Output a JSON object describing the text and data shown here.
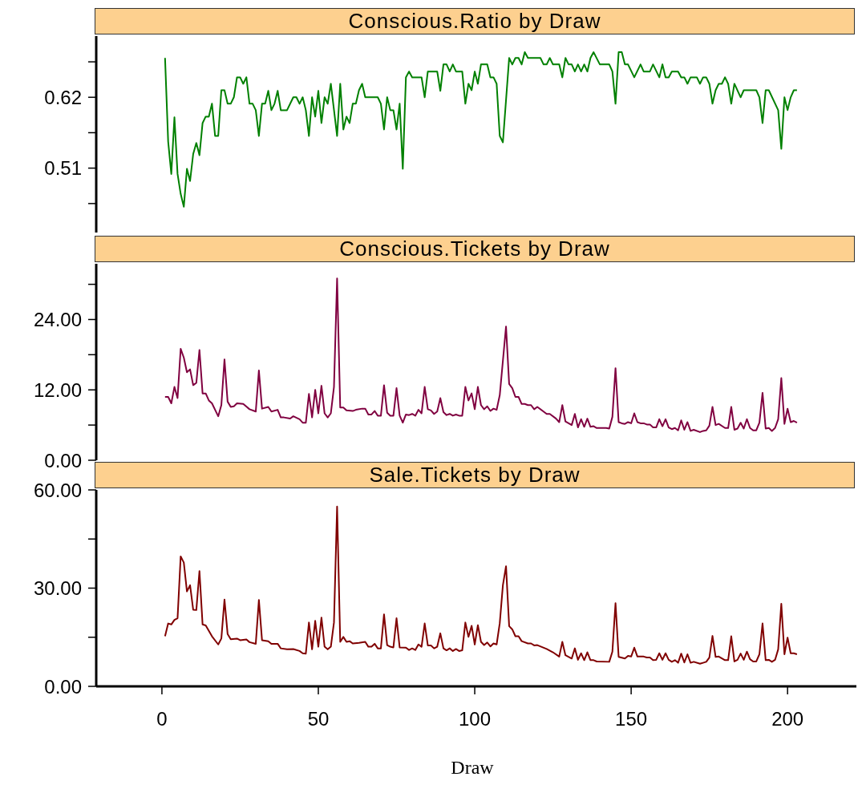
{
  "chart_data": [
    {
      "type": "line",
      "title": "Conscious.Ratio by Draw",
      "tick_labels": "y",
      "marker": "none",
      "xlim": [
        -21,
        222
      ],
      "ylim": [
        0.41,
        0.715
      ],
      "yticks": [
        {
          "value": 0.455,
          "label": null
        },
        0.51,
        {
          "value": 0.565,
          "label": null
        },
        0.62,
        {
          "value": 0.675,
          "label": null
        }
      ],
      "series": [
        {
          "color": "#008000",
          "x": [
            1,
            2,
            3,
            4,
            5,
            6,
            7,
            8,
            9,
            10,
            11,
            12,
            13,
            14,
            15,
            16,
            17,
            18,
            19,
            20,
            21,
            22,
            23,
            24,
            25,
            26,
            27,
            28,
            29,
            30,
            31,
            32,
            33,
            34,
            35,
            36,
            37,
            38,
            40,
            42,
            43,
            44,
            45,
            46,
            47,
            48,
            49,
            50,
            51,
            52,
            53,
            54,
            56,
            57,
            58,
            59,
            60,
            61,
            62,
            63,
            64,
            65,
            69,
            70,
            71,
            72,
            73,
            74,
            75,
            76,
            77,
            78,
            79,
            80,
            83,
            84,
            85,
            88,
            89,
            90,
            91,
            92,
            93,
            94,
            96,
            97,
            98,
            99,
            100,
            101,
            102,
            104,
            105,
            106,
            107,
            108,
            109,
            111,
            112,
            113,
            114,
            115,
            116,
            117,
            121,
            122,
            123,
            124,
            125,
            127,
            128,
            129,
            130,
            131,
            132,
            133,
            134,
            135,
            136,
            137,
            138,
            140,
            143,
            144,
            145,
            146,
            147,
            148,
            149,
            151,
            153,
            154,
            156,
            157,
            159,
            160,
            161,
            162,
            163,
            165,
            166,
            167,
            168,
            169,
            171,
            172,
            173,
            174,
            175,
            176,
            177,
            178,
            179,
            180,
            181,
            182,
            183,
            185,
            186,
            190,
            191,
            192,
            193,
            194,
            197,
            198,
            199,
            200,
            201,
            202,
            203
          ],
          "values": [
            0.681,
            0.551,
            0.501,
            0.589,
            0.501,
            0.47,
            0.45,
            0.509,
            0.49,
            0.532,
            0.549,
            0.53,
            0.58,
            0.59,
            0.59,
            0.61,
            0.56,
            0.56,
            0.631,
            0.631,
            0.61,
            0.61,
            0.62,
            0.651,
            0.651,
            0.641,
            0.651,
            0.61,
            0.61,
            0.6,
            0.56,
            0.61,
            0.61,
            0.63,
            0.6,
            0.61,
            0.63,
            0.6,
            0.6,
            0.62,
            0.62,
            0.61,
            0.62,
            0.6,
            0.56,
            0.62,
            0.59,
            0.63,
            0.58,
            0.62,
            0.61,
            0.641,
            0.56,
            0.641,
            0.57,
            0.59,
            0.58,
            0.61,
            0.61,
            0.631,
            0.641,
            0.62,
            0.62,
            0.61,
            0.57,
            0.62,
            0.6,
            0.6,
            0.57,
            0.61,
            0.509,
            0.651,
            0.66,
            0.651,
            0.651,
            0.62,
            0.66,
            0.66,
            0.63,
            0.671,
            0.671,
            0.66,
            0.671,
            0.66,
            0.66,
            0.61,
            0.641,
            0.631,
            0.66,
            0.641,
            0.671,
            0.671,
            0.651,
            0.651,
            0.641,
            0.56,
            0.55,
            0.681,
            0.671,
            0.681,
            0.681,
            0.671,
            0.69,
            0.681,
            0.681,
            0.671,
            0.671,
            0.681,
            0.671,
            0.671,
            0.651,
            0.681,
            0.671,
            0.671,
            0.66,
            0.671,
            0.66,
            0.671,
            0.66,
            0.681,
            0.69,
            0.671,
            0.671,
            0.66,
            0.61,
            0.69,
            0.69,
            0.671,
            0.671,
            0.651,
            0.671,
            0.66,
            0.66,
            0.671,
            0.651,
            0.671,
            0.651,
            0.651,
            0.66,
            0.66,
            0.651,
            0.651,
            0.641,
            0.651,
            0.651,
            0.641,
            0.651,
            0.651,
            0.641,
            0.61,
            0.631,
            0.641,
            0.641,
            0.651,
            0.641,
            0.61,
            0.641,
            0.62,
            0.631,
            0.631,
            0.62,
            0.58,
            0.631,
            0.631,
            0.6,
            0.54,
            0.62,
            0.6,
            0.62,
            0.631,
            0.631
          ]
        }
      ]
    },
    {
      "type": "line",
      "title": "Conscious.Tickets by Draw",
      "tick_labels": "y",
      "marker": "none",
      "xlim": [
        -21,
        222
      ],
      "ylim": [
        0,
        33.5
      ],
      "yticks": [
        {
          "value": 0,
          "label": "0.00"
        },
        {
          "value": 6,
          "label": null
        },
        {
          "value": 12,
          "label": "12.00"
        },
        {
          "value": 18,
          "label": null
        },
        {
          "value": 24,
          "label": "24.00"
        },
        {
          "value": 30,
          "label": null
        }
      ],
      "series": [
        {
          "color": "#800040",
          "x": [
            1,
            2,
            3,
            4,
            5,
            6,
            7,
            8,
            9,
            10,
            11,
            12,
            13,
            14,
            15,
            16,
            18,
            19,
            20,
            21,
            22,
            23,
            24,
            26,
            28,
            30,
            31,
            32,
            34,
            35,
            37,
            38,
            39,
            41,
            42,
            44,
            45,
            46,
            47,
            48,
            49,
            50,
            51,
            52,
            53,
            54,
            55,
            56,
            57,
            58,
            59,
            61,
            62,
            64,
            65,
            66,
            67,
            68,
            69,
            70,
            71,
            72,
            73,
            74,
            75,
            76,
            77,
            78,
            79,
            80,
            81,
            82,
            83,
            84,
            85,
            86,
            87,
            88,
            89,
            90,
            91,
            92,
            93,
            94,
            95,
            96,
            97,
            98,
            99,
            100,
            101,
            102,
            103,
            104,
            105,
            106,
            107,
            108,
            110,
            111,
            112,
            113,
            114,
            115,
            116,
            117,
            118,
            119,
            120,
            123,
            124,
            126,
            127,
            128,
            129,
            131,
            132,
            133,
            134,
            135,
            136,
            137,
            138,
            139,
            142,
            143,
            144,
            145,
            146,
            147,
            148,
            149,
            150,
            151,
            152,
            153,
            154,
            155,
            156,
            157,
            158,
            159,
            160,
            161,
            162,
            163,
            164,
            165,
            166,
            167,
            168,
            169,
            170,
            172,
            173,
            174,
            175,
            176,
            177,
            178,
            180,
            181,
            182,
            183,
            184,
            185,
            186,
            187,
            188,
            189,
            190,
            191,
            192,
            193,
            194,
            195,
            196,
            197,
            198,
            199,
            200,
            201,
            202,
            203
          ],
          "values": [
            10.8,
            10.8,
            9.7,
            12.5,
            10.6,
            19.0,
            17.5,
            15.0,
            15.5,
            12.8,
            13.2,
            18.8,
            11.4,
            11.4,
            10.2,
            9.7,
            7.5,
            9.4,
            17.2,
            10.0,
            9.1,
            9.2,
            9.7,
            9.6,
            8.7,
            8.3,
            15.3,
            8.8,
            9.1,
            8.3,
            8.6,
            7.3,
            7.3,
            7.1,
            7.5,
            7.0,
            6.4,
            6.4,
            11.3,
            7.3,
            12.0,
            8.0,
            12.7,
            8.0,
            7.3,
            8.0,
            12.5,
            31.0,
            9.0,
            9.0,
            8.5,
            8.4,
            8.6,
            8.8,
            8.8,
            7.8,
            7.8,
            8.4,
            7.6,
            7.6,
            12.8,
            8.1,
            7.6,
            7.6,
            12.3,
            7.6,
            6.4,
            7.8,
            7.7,
            7.9,
            7.6,
            8.6,
            8.0,
            12.5,
            8.7,
            8.5,
            7.9,
            8.3,
            10.6,
            8.2,
            7.7,
            7.9,
            7.6,
            7.8,
            7.6,
            7.6,
            12.5,
            10.2,
            11.4,
            8.7,
            12.5,
            9.4,
            8.7,
            9.2,
            8.4,
            8.8,
            8.6,
            11.1,
            22.8,
            13.0,
            12.3,
            10.8,
            10.8,
            9.6,
            9.6,
            9.4,
            9.4,
            8.7,
            9.1,
            7.9,
            7.9,
            7.1,
            6.5,
            9.4,
            6.6,
            6.0,
            7.9,
            5.6,
            7.0,
            5.7,
            7.1,
            5.7,
            5.8,
            5.5,
            5.5,
            5.4,
            7.4,
            15.7,
            6.5,
            6.3,
            6.2,
            6.5,
            6.3,
            8.0,
            6.5,
            6.3,
            6.3,
            6.1,
            6.1,
            5.6,
            5.6,
            7.0,
            5.8,
            7.0,
            5.6,
            5.3,
            5.5,
            5.1,
            6.8,
            5.2,
            6.5,
            5.0,
            5.2,
            4.8,
            5.0,
            5.1,
            5.9,
            9.1,
            6.0,
            6.2,
            5.5,
            5.5,
            9.1,
            5.2,
            5.4,
            6.4,
            5.4,
            7.0,
            5.5,
            5.1,
            5.1,
            6.4,
            11.5,
            5.4,
            5.5,
            5.0,
            5.5,
            7.0,
            14.0,
            6.2,
            8.8,
            6.5,
            6.7,
            6.4
          ]
        }
      ]
    },
    {
      "type": "line",
      "title": "Sale.Tickets by Draw",
      "xlabel": "Draw",
      "marker": "none",
      "xlim": [
        -21,
        222
      ],
      "xticks": [
        0,
        50,
        100,
        150,
        200
      ],
      "ylim": [
        0,
        60
      ],
      "yticks": [
        {
          "value": 0,
          "label": "0.00"
        },
        {
          "value": 15,
          "label": null
        },
        {
          "value": 30,
          "label": "30.00"
        },
        {
          "value": 45,
          "label": null
        },
        {
          "value": 60,
          "label": "60.00"
        }
      ],
      "series": [
        {
          "color": "#800000",
          "x": [
            1,
            2,
            3,
            4,
            5,
            6,
            7,
            8,
            9,
            10,
            11,
            12,
            13,
            14,
            16,
            18,
            19,
            20,
            21,
            22,
            24,
            25,
            27,
            28,
            30,
            31,
            32,
            34,
            35,
            37,
            38,
            40,
            42,
            44,
            45,
            46,
            47,
            48,
            49,
            50,
            51,
            52,
            53,
            54,
            55,
            56,
            57,
            58,
            59,
            60,
            61,
            63,
            65,
            66,
            67,
            68,
            69,
            70,
            71,
            72,
            73,
            74,
            75,
            76,
            78,
            79,
            80,
            81,
            82,
            83,
            84,
            85,
            86,
            87,
            88,
            89,
            90,
            91,
            92,
            93,
            94,
            95,
            96,
            97,
            98,
            99,
            100,
            101,
            102,
            103,
            104,
            105,
            106,
            107,
            108,
            109,
            110,
            111,
            112,
            113,
            114,
            115,
            117,
            118,
            119,
            120,
            123,
            125,
            127,
            128,
            129,
            131,
            132,
            133,
            134,
            135,
            136,
            137,
            138,
            139,
            143,
            144,
            145,
            146,
            148,
            149,
            150,
            151,
            152,
            154,
            155,
            156,
            157,
            158,
            159,
            160,
            161,
            162,
            163,
            164,
            165,
            166,
            167,
            168,
            169,
            170,
            172,
            173,
            174,
            175,
            176,
            177,
            178,
            180,
            181,
            182,
            183,
            184,
            185,
            186,
            187,
            188,
            189,
            190,
            191,
            192,
            193,
            194,
            195,
            196,
            197,
            198,
            199,
            200,
            201,
            202,
            203
          ],
          "values": [
            15.3,
            19.2,
            18.9,
            20.3,
            20.8,
            39.7,
            37.8,
            29.0,
            30.9,
            23.4,
            23.3,
            35.2,
            18.9,
            18.6,
            15.3,
            12.8,
            14.6,
            26.5,
            16.0,
            14.4,
            14.6,
            14.1,
            14.3,
            13.5,
            13.0,
            26.4,
            14.1,
            13.8,
            13.0,
            13.0,
            11.6,
            11.3,
            11.4,
            10.8,
            10.1,
            10.0,
            19.5,
            11.3,
            20.0,
            12.1,
            21.0,
            12.1,
            11.3,
            12.1,
            19.5,
            54.9,
            13.6,
            15.1,
            13.6,
            13.8,
            13.1,
            13.3,
            13.6,
            12.1,
            12.1,
            13.0,
            11.6,
            11.6,
            22.0,
            12.6,
            12.1,
            11.9,
            20.8,
            11.9,
            11.8,
            11.1,
            11.6,
            11.1,
            12.8,
            12.1,
            19.2,
            12.5,
            12.5,
            11.6,
            12.1,
            16.2,
            11.6,
            11.0,
            11.6,
            10.8,
            11.4,
            10.8,
            11.0,
            19.5,
            15.1,
            18.5,
            12.8,
            18.7,
            13.6,
            12.6,
            13.4,
            12.2,
            13.1,
            12.8,
            19.3,
            30.9,
            36.7,
            18.4,
            17.4,
            15.3,
            15.3,
            13.8,
            13.1,
            13.1,
            12.5,
            12.6,
            11.4,
            10.4,
            9.1,
            13.6,
            9.5,
            8.5,
            11.6,
            8.1,
            10.1,
            8.0,
            10.4,
            8.0,
            8.0,
            7.6,
            7.5,
            10.6,
            25.4,
            9.0,
            8.5,
            9.3,
            9.1,
            11.8,
            9.1,
            9.1,
            8.8,
            8.8,
            8.0,
            8.1,
            10.1,
            8.1,
            10.1,
            8.1,
            7.5,
            8.0,
            7.2,
            10.0,
            7.3,
            9.8,
            7.2,
            7.5,
            6.9,
            7.2,
            7.5,
            8.8,
            15.4,
            9.0,
            9.1,
            8.0,
            8.0,
            15.3,
            7.6,
            8.1,
            10.0,
            8.1,
            10.6,
            8.3,
            7.6,
            7.6,
            9.8,
            19.2,
            8.0,
            8.1,
            7.5,
            8.1,
            11.3,
            25.2,
            9.8,
            14.9,
            10.1,
            10.1,
            9.8
          ]
        }
      ]
    }
  ]
}
